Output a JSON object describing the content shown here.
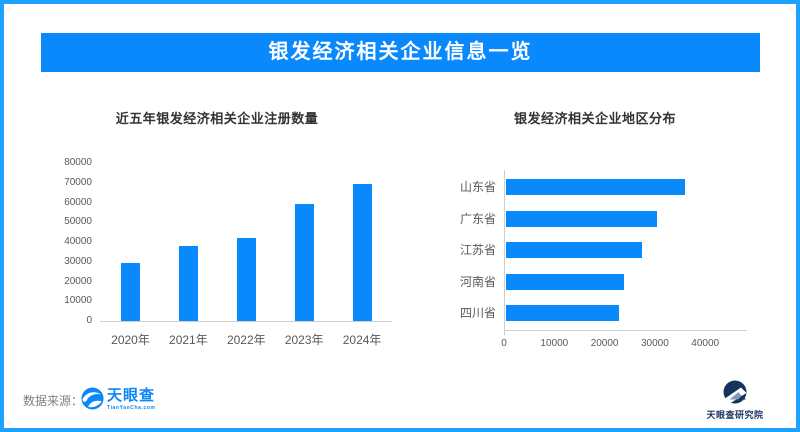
{
  "poster": {
    "banner_title": "银发经济相关企业信息一览",
    "source_label": "数据来源：",
    "tianyancha_logo": {
      "text": "天眼查",
      "subtext": "TianYanCha.com"
    },
    "institute_logo": {
      "text": "天眼查研究院"
    }
  },
  "colors": {
    "frame_border": "#1BA2FF",
    "banner_bg": "#0989FB",
    "banner_text": "#FFFFFF",
    "bar_fill": "#0989FB",
    "chart_title": "#333333",
    "axis_text": "#595959",
    "axis_line": "#CFCFCF",
    "source_text": "#808080",
    "tianyancha_blue": "#0C87F8",
    "institute_navy": "#16335E"
  },
  "chart_data": [
    {
      "type": "bar",
      "orientation": "vertical",
      "title": "近五年银发经济相关企业注册数量",
      "categories": [
        "2020年",
        "2021年",
        "2022年",
        "2023年",
        "2024年"
      ],
      "values": [
        29500,
        38000,
        42000,
        59500,
        69500
      ],
      "xlabel": "",
      "ylabel": "",
      "ylim": [
        0,
        80000
      ],
      "yticks": [
        0,
        10000,
        20000,
        30000,
        40000,
        50000,
        60000,
        70000,
        80000
      ],
      "grid": false,
      "legend": false,
      "bar_color": "#0989FB"
    },
    {
      "type": "bar",
      "orientation": "horizontal",
      "title": "银发经济相关企业地区分布",
      "categories": [
        "山东省",
        "广东省",
        "江苏省",
        "河南省",
        "四川省"
      ],
      "values": [
        35500,
        30000,
        27000,
        23500,
        22500
      ],
      "xlabel": "",
      "ylabel": "",
      "xlim": [
        0,
        48000
      ],
      "xticks": [
        0,
        10000,
        20000,
        30000,
        40000
      ],
      "grid": false,
      "legend": false,
      "bar_color": "#0989FB"
    }
  ]
}
